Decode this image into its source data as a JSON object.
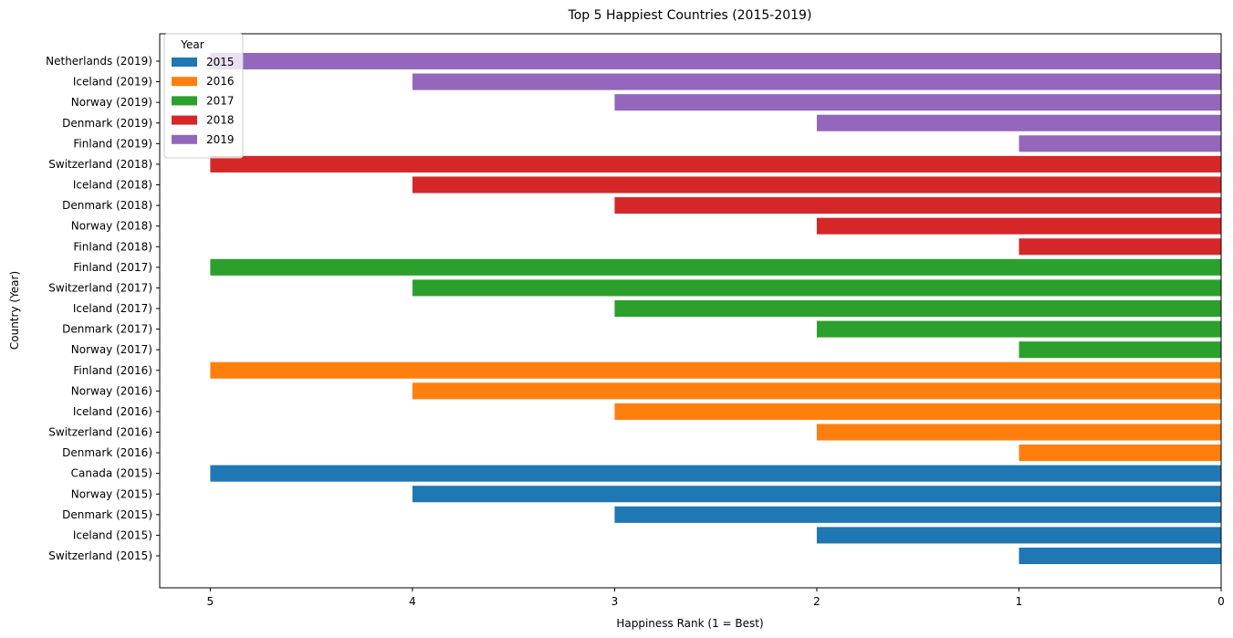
{
  "chart_data": {
    "type": "bar",
    "orientation": "horizontal",
    "title": "Top 5 Happiest Countries (2015-2019)",
    "xlabel": "Happiness Rank (1 = Best)",
    "ylabel": "Country (Year)",
    "xlim": [
      5.25,
      0
    ],
    "x_inverted": true,
    "x_ticks": [
      5,
      4,
      3,
      2,
      1,
      0
    ],
    "grid": false,
    "legend": {
      "title": "Year",
      "placement": "top-left",
      "entries": [
        {
          "label": "2015",
          "color": "#1f77b4"
        },
        {
          "label": "2016",
          "color": "#ff7f0e"
        },
        {
          "label": "2017",
          "color": "#2ca02c"
        },
        {
          "label": "2018",
          "color": "#d62728"
        },
        {
          "label": "2019",
          "color": "#9467bd"
        }
      ]
    },
    "series": [
      {
        "name": "2015",
        "color": "#1f77b4",
        "categories": [
          "Switzerland (2015)",
          "Iceland (2015)",
          "Denmark (2015)",
          "Norway (2015)",
          "Canada (2015)"
        ],
        "values": [
          1,
          2,
          3,
          4,
          5
        ]
      },
      {
        "name": "2016",
        "color": "#ff7f0e",
        "categories": [
          "Denmark (2016)",
          "Switzerland (2016)",
          "Iceland (2016)",
          "Norway (2016)",
          "Finland (2016)"
        ],
        "values": [
          1,
          2,
          3,
          4,
          5
        ]
      },
      {
        "name": "2017",
        "color": "#2ca02c",
        "categories": [
          "Norway (2017)",
          "Denmark (2017)",
          "Iceland (2017)",
          "Switzerland (2017)",
          "Finland (2017)"
        ],
        "values": [
          1,
          2,
          3,
          4,
          5
        ]
      },
      {
        "name": "2018",
        "color": "#d62728",
        "categories": [
          "Finland (2018)",
          "Norway (2018)",
          "Denmark (2018)",
          "Iceland (2018)",
          "Switzerland (2018)"
        ],
        "values": [
          1,
          2,
          3,
          4,
          5
        ]
      },
      {
        "name": "2019",
        "color": "#9467bd",
        "categories": [
          "Finland (2019)",
          "Denmark (2019)",
          "Norway (2019)",
          "Iceland (2019)",
          "Netherlands (2019)"
        ],
        "values": [
          1,
          2,
          3,
          4,
          5
        ]
      }
    ]
  }
}
